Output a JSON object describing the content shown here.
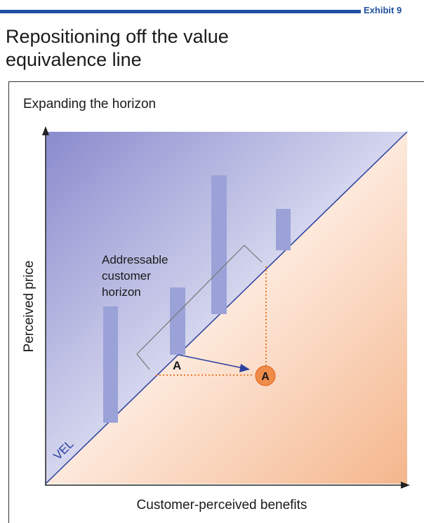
{
  "header": {
    "exhibit_label": "Exhibit 9",
    "title": "Repositioning off the value equivalence line"
  },
  "panel": {
    "subtitle": "Expanding the horizon"
  },
  "diagram": {
    "y_axis_label": "Perceived price",
    "x_axis_label": "Customer-perceived benefits",
    "line_label": "VEL",
    "horizon_label": [
      "Addressable",
      "customer",
      "horizon"
    ],
    "point_original_label": "A",
    "point_new_label": "A"
  },
  "colors": {
    "exhibit_blue": "#1f4fa0",
    "bar_fill": "#9aa2d8",
    "upper_region": "#8e8fcf",
    "lower_region": "#f6c09b",
    "dotted_orange": "#ee7a2a",
    "point_orange": "#f08c4a"
  }
}
